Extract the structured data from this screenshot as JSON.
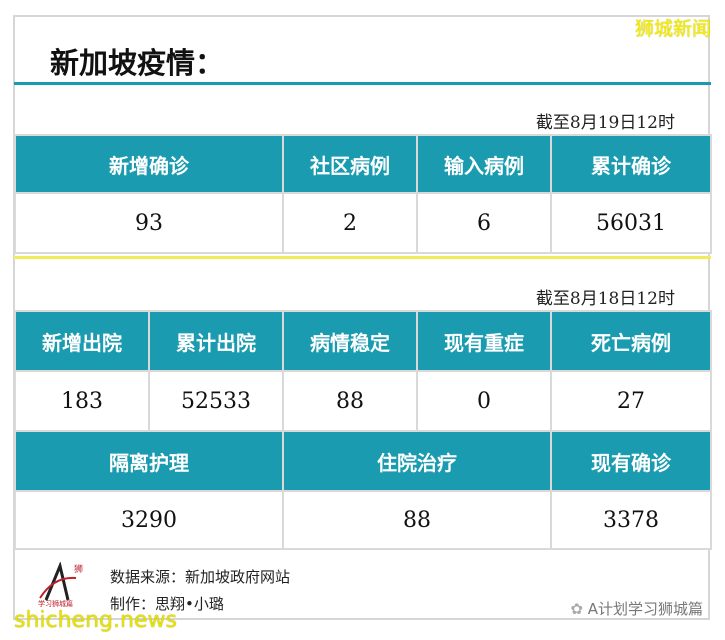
{
  "brand": "狮城新闻",
  "title": "新加坡疫情：",
  "section1": {
    "date": "截至8月19日12时",
    "headers": [
      "新增确诊",
      "社区病例",
      "输入病例",
      "累计确诊"
    ],
    "values": [
      "93",
      "2",
      "6",
      "56031"
    ]
  },
  "section2": {
    "date": "截至8月18日12时",
    "headers": [
      "新增出院",
      "累计出院",
      "病情稳定",
      "现有重症",
      "死亡病例"
    ],
    "values": [
      "183",
      "52533",
      "88",
      "0",
      "27"
    ],
    "headers2": [
      "隔离护理",
      "住院治疗",
      "现有确诊"
    ],
    "values2": [
      "3290",
      "88",
      "3378"
    ]
  },
  "footer": {
    "source": "数据来源：新加坡政府网站",
    "author": "制作：思翔•小璐",
    "logo_text": "学习狮城篇",
    "account": "A计划学习狮城篇",
    "watermark": "shicheng.news"
  },
  "colors": {
    "header": "#1a9bb0",
    "divider": "#f0ec5a"
  }
}
